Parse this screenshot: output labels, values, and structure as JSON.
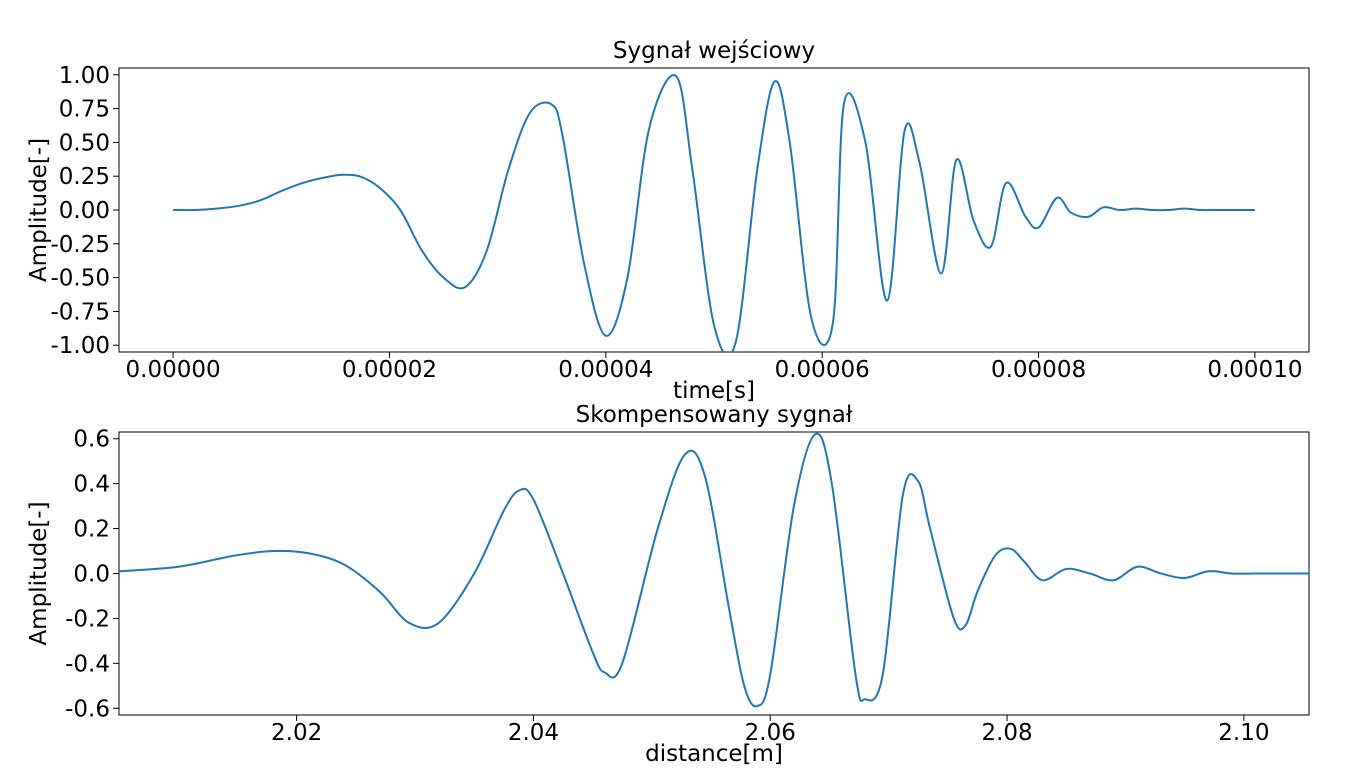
{
  "chart_data": [
    {
      "type": "line",
      "title": "Sygnał wejściowy",
      "xlabel": "time[s]",
      "ylabel": "Amplitude[-]",
      "xlim": [
        -5e-06,
        0.000105
      ],
      "ylim": [
        -1.05,
        1.05
      ],
      "xticks": [
        0,
        2e-05,
        4e-05,
        6e-05,
        8e-05,
        0.0001
      ],
      "xtick_labels": [
        "0.00000",
        "0.00002",
        "0.00004",
        "0.00006",
        "0.00008",
        "0.00010"
      ],
      "yticks": [
        1.0,
        0.75,
        0.5,
        0.25,
        0.0,
        -0.25,
        -0.5,
        -0.75,
        -1.0
      ],
      "ytick_labels": [
        "1.00",
        "0.75",
        "0.50",
        "0.25",
        "0.00",
        "-0.25",
        "-0.50",
        "-0.75",
        "-1.00"
      ],
      "grid": false,
      "color": "#1f77b4",
      "series": [
        {
          "x": [
            0,
            2e-06,
            4e-06,
            6e-06,
            8e-06,
            1e-05,
            1.2e-05,
            1.4e-05,
            1.55e-05,
            1.72e-05,
            1.9e-05,
            2.1e-05,
            2.3e-05,
            2.5e-05,
            2.7e-05,
            2.9e-05,
            3.1e-05,
            3.3e-05,
            3.5e-05,
            3.6e-05,
            3.8e-05,
            4e-05,
            4.2e-05,
            4.4e-05,
            4.65e-05,
            4.8e-05,
            5e-05,
            5.2e-05,
            5.4e-05,
            5.56e-05,
            5.7e-05,
            5.9e-05,
            6.1e-05,
            6.2e-05,
            6.4e-05,
            6.6e-05,
            6.76e-05,
            6.9e-05,
            7.1e-05,
            7.24e-05,
            7.4e-05,
            7.56e-05,
            7.7e-05,
            7.88e-05,
            8e-05,
            8.17e-05,
            8.3e-05,
            8.46e-05,
            8.6e-05,
            8.75e-05,
            8.9e-05,
            9.05e-05,
            9.2e-05,
            9.35e-05,
            9.5e-05,
            9.65e-05,
            9.8e-05,
            0.0001
          ],
          "y": [
            0.0,
            0.0,
            0.01,
            0.03,
            0.07,
            0.14,
            0.2,
            0.24,
            0.26,
            0.25,
            0.17,
            0.0,
            -0.3,
            -0.5,
            -0.57,
            -0.3,
            0.3,
            0.72,
            0.78,
            0.55,
            -0.4,
            -0.93,
            -0.5,
            0.6,
            0.99,
            0.3,
            -0.85,
            -0.98,
            0.3,
            0.95,
            0.5,
            -0.8,
            -0.83,
            0.78,
            0.5,
            -0.67,
            0.58,
            0.35,
            -0.47,
            0.37,
            -0.08,
            -0.27,
            0.2,
            -0.05,
            -0.13,
            0.09,
            -0.02,
            -0.05,
            0.02,
            0.0,
            0.01,
            0.0,
            0.0,
            0.01,
            0.0,
            0.0,
            0.0,
            0.0
          ]
        }
      ]
    },
    {
      "type": "line",
      "title": "Skompensowany sygnał",
      "xlabel": "distance[m]",
      "ylabel": "Amplitude[-]",
      "xlim": [
        2.005,
        2.1055
      ],
      "ylim": [
        -0.63,
        0.63
      ],
      "xticks": [
        2.02,
        2.04,
        2.06,
        2.08,
        2.1
      ],
      "xtick_labels": [
        "2.02",
        "2.04",
        "2.06",
        "2.08",
        "2.10"
      ],
      "yticks": [
        0.6,
        0.4,
        0.2,
        0.0,
        -0.2,
        -0.4,
        -0.6
      ],
      "ytick_labels": [
        "0.6",
        "0.4",
        "0.2",
        "0.0",
        "-0.2",
        "-0.4",
        "-0.6"
      ],
      "grid": false,
      "color": "#1f77b4",
      "series": [
        {
          "x": [
            2.005,
            2.01,
            2.0148,
            2.018,
            2.021,
            2.024,
            2.027,
            2.0295,
            2.032,
            2.035,
            2.0375,
            2.0388,
            2.04,
            2.0425,
            2.045,
            2.046,
            2.0475,
            2.0505,
            2.0528,
            2.0545,
            2.0565,
            2.0578,
            2.0589,
            2.06,
            2.062,
            2.0638,
            2.0652,
            2.0672,
            2.068,
            2.0695,
            2.0712,
            2.0725,
            2.0735,
            2.0755,
            2.0765,
            2.0775,
            2.079,
            2.0803,
            2.0815,
            2.083,
            2.085,
            2.087,
            2.089,
            2.091,
            2.093,
            2.095,
            2.097,
            2.099,
            2.101,
            2.103,
            2.1055
          ],
          "y": [
            0.01,
            0.03,
            0.08,
            0.1,
            0.09,
            0.04,
            -0.08,
            -0.22,
            -0.22,
            0.0,
            0.28,
            0.37,
            0.33,
            0.0,
            -0.35,
            -0.44,
            -0.4,
            0.2,
            0.53,
            0.43,
            -0.15,
            -0.5,
            -0.59,
            -0.45,
            0.3,
            0.62,
            0.4,
            -0.45,
            -0.56,
            -0.45,
            0.35,
            0.41,
            0.2,
            -0.2,
            -0.23,
            -0.08,
            0.08,
            0.11,
            0.05,
            -0.03,
            0.02,
            0.0,
            -0.03,
            0.03,
            0.0,
            -0.02,
            0.01,
            0.0,
            0.0,
            0.0,
            0.0
          ]
        }
      ]
    }
  ]
}
